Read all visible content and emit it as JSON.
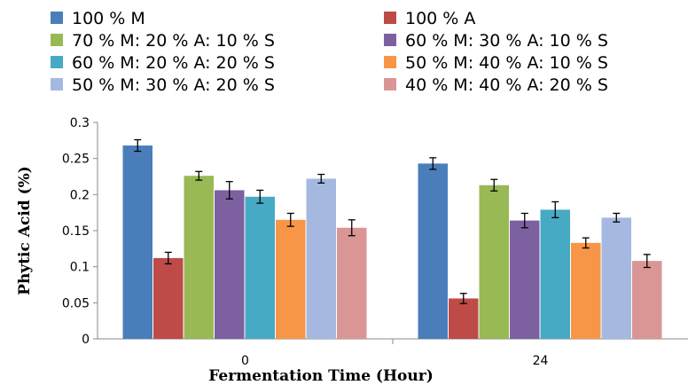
{
  "chart_data": {
    "type": "bar",
    "title": "",
    "xlabel": "Fermentation Time  (Hour)",
    "ylabel": "Phytic Acid (%)",
    "categories": [
      "0",
      "24"
    ],
    "ylim": [
      0,
      0.3
    ],
    "yticks": [
      "0",
      "0.05",
      "0.1",
      "0.15",
      "0.2",
      "0.25",
      "0.3"
    ],
    "grid": false,
    "legend_position": "top",
    "error_bars": true,
    "series": [
      {
        "name": "100 % M",
        "color": "#4a7ebb",
        "values": [
          0.268,
          0.243
        ],
        "errors": [
          0.008,
          0.008
        ]
      },
      {
        "name": "100 % A",
        "color": "#be4b48",
        "values": [
          0.112,
          0.056
        ],
        "errors": [
          0.008,
          0.007
        ]
      },
      {
        "name": "70 % M: 20 % A: 10 % S",
        "color": "#98b954",
        "values": [
          0.226,
          0.213
        ],
        "errors": [
          0.006,
          0.008
        ]
      },
      {
        "name": "60 % M: 30 % A: 10 % S",
        "color": "#7d60a0",
        "values": [
          0.206,
          0.164
        ],
        "errors": [
          0.012,
          0.01
        ]
      },
      {
        "name": "60 % M: 20 % A: 20 % S",
        "color": "#46aac5",
        "values": [
          0.197,
          0.179
        ],
        "errors": [
          0.009,
          0.011
        ]
      },
      {
        "name": "50 % M: 40 % A: 10 % S",
        "color": "#f79646",
        "values": [
          0.165,
          0.133
        ],
        "errors": [
          0.009,
          0.007
        ]
      },
      {
        "name": "50 % M: 30 % A: 20 % S",
        "color": "#a5b9e0",
        "values": [
          0.222,
          0.168
        ],
        "errors": [
          0.006,
          0.006
        ]
      },
      {
        "name": "40 % M: 40 % A: 20 % S",
        "color": "#d99694",
        "values": [
          0.154,
          0.108
        ],
        "errors": [
          0.011,
          0.009
        ]
      }
    ]
  }
}
